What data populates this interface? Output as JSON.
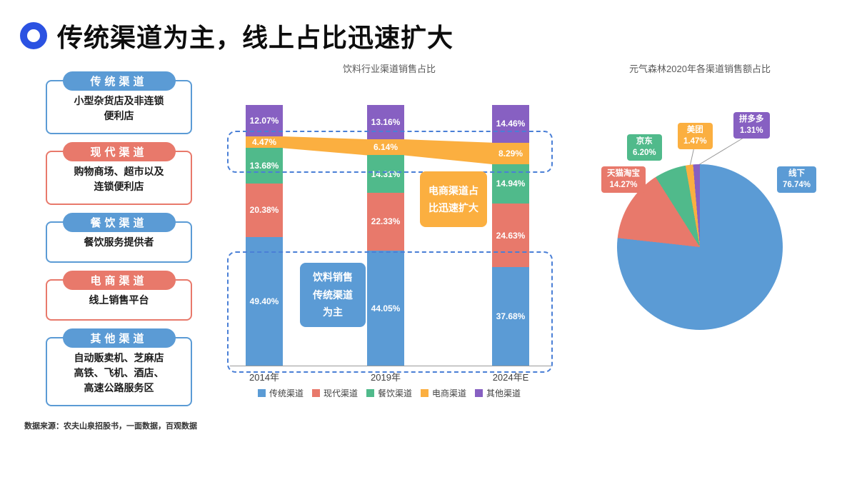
{
  "slide": {
    "title": "传统渠道为主，线上占比迅速扩大",
    "source_note": "数据来源：农夫山泉招股书，一面数据，百观数据"
  },
  "colors": {
    "blue": "#5B9BD5",
    "red": "#E8796B",
    "green": "#50BA8B",
    "orange": "#FBAF40",
    "purple": "#8760C2",
    "ring": "#2B52E2",
    "dashed": "#4A7FD6"
  },
  "channel_cards": [
    {
      "label": "传统渠道",
      "color": "blue",
      "desc": "小型杂货店及非连锁\n便利店"
    },
    {
      "label": "现代渠道",
      "color": "red",
      "desc": "购物商场、超市以及\n连锁便利店"
    },
    {
      "label": "餐饮渠道",
      "color": "blue",
      "desc": "餐饮服务提供者"
    },
    {
      "label": "电商渠道",
      "color": "red",
      "desc": "线上销售平台"
    },
    {
      "label": "其他渠道",
      "color": "blue",
      "desc": "自动贩卖机、芝麻店\n高铁、飞机、酒店、\n高速公路服务区"
    }
  ],
  "chart_data": [
    {
      "type": "bar",
      "stacked": true,
      "unit": "%",
      "title": "饮料行业渠道销售占比",
      "categories": [
        "2014年",
        "2019年",
        "2024年E"
      ],
      "series": [
        {
          "name": "传统渠道",
          "color": "#5B9BD5",
          "values": [
            49.4,
            44.05,
            37.68
          ]
        },
        {
          "name": "现代渠道",
          "color": "#E8796B",
          "values": [
            20.38,
            22.33,
            24.63
          ]
        },
        {
          "name": "餐饮渠道",
          "color": "#50BA8B",
          "values": [
            13.68,
            14.31,
            14.94
          ]
        },
        {
          "name": "电商渠道",
          "color": "#FBAF40",
          "values": [
            4.47,
            6.14,
            8.29
          ]
        },
        {
          "name": "其他渠道",
          "color": "#8760C2",
          "values": [
            12.07,
            13.16,
            14.46
          ]
        }
      ],
      "ylim": [
        0,
        100
      ],
      "legend_position": "bottom",
      "annotations": [
        "饮料销售\n传统渠道\n为主",
        "电商渠道占\n比迅速扩大"
      ]
    },
    {
      "type": "pie",
      "title": "元气森林2020年各渠道销售额占比",
      "slices": [
        {
          "name": "线下",
          "value": 76.74,
          "color": "#5B9BD5"
        },
        {
          "name": "天猫淘宝",
          "value": 14.27,
          "color": "#E8796B"
        },
        {
          "name": "京东",
          "value": 6.2,
          "color": "#50BA8B"
        },
        {
          "name": "美团",
          "value": 1.47,
          "color": "#FBAF40"
        },
        {
          "name": "拼多多",
          "value": 1.31,
          "color": "#8760C2"
        }
      ]
    }
  ]
}
